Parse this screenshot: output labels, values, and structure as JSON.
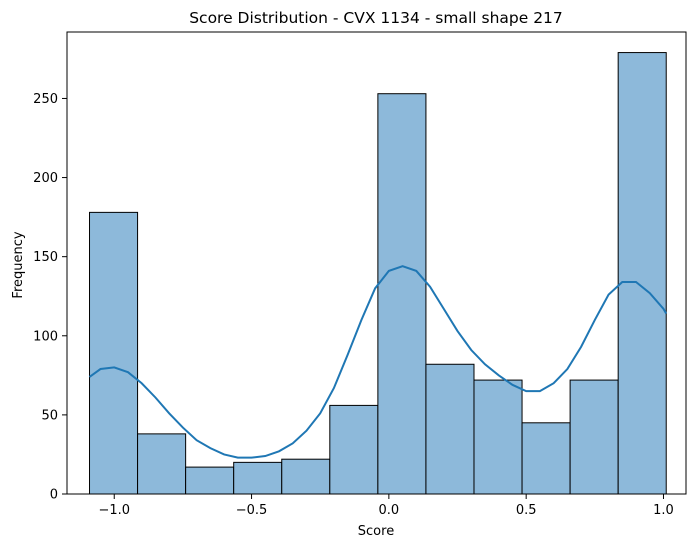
{
  "chart_data": {
    "type": "bar",
    "title": "Score Distribution - CVX 1134 - small shape 217",
    "xlabel": "Score",
    "ylabel": "Frequency",
    "xlim": [
      -1.172,
      1.082
    ],
    "ylim": [
      0,
      292
    ],
    "x_ticks": [
      -1.0,
      -0.5,
      0.0,
      0.5,
      1.0
    ],
    "x_tick_labels": [
      "−1.0",
      "−0.5",
      "0.0",
      "0.5",
      "1.0"
    ],
    "y_ticks": [
      0,
      50,
      100,
      150,
      200,
      250
    ],
    "y_tick_labels": [
      "0",
      "50",
      "100",
      "150",
      "200",
      "250"
    ],
    "grid": false,
    "bar_color": "#8db9da",
    "bar_edge_color": "#000000",
    "kde_color": "#1f77b4",
    "bins": [
      {
        "start": -1.09,
        "end": -0.915,
        "count": 178
      },
      {
        "start": -0.915,
        "end": -0.74,
        "count": 38
      },
      {
        "start": -0.74,
        "end": -0.565,
        "count": 17
      },
      {
        "start": -0.565,
        "end": -0.39,
        "count": 20
      },
      {
        "start": -0.39,
        "end": -0.215,
        "count": 22
      },
      {
        "start": -0.215,
        "end": -0.04,
        "count": 56
      },
      {
        "start": -0.04,
        "end": 0.135,
        "count": 253
      },
      {
        "start": 0.135,
        "end": 0.31,
        "count": 82
      },
      {
        "start": 0.31,
        "end": 0.485,
        "count": 72
      },
      {
        "start": 0.485,
        "end": 0.66,
        "count": 45
      },
      {
        "start": 0.66,
        "end": 0.835,
        "count": 72
      },
      {
        "start": 0.835,
        "end": 1.01,
        "count": 279
      }
    ],
    "kde": {
      "x": [
        -1.09,
        -1.05,
        -1.0,
        -0.95,
        -0.9,
        -0.85,
        -0.8,
        -0.75,
        -0.7,
        -0.65,
        -0.6,
        -0.55,
        -0.5,
        -0.45,
        -0.4,
        -0.35,
        -0.3,
        -0.25,
        -0.2,
        -0.15,
        -0.1,
        -0.05,
        0.0,
        0.05,
        0.1,
        0.15,
        0.2,
        0.25,
        0.3,
        0.35,
        0.4,
        0.45,
        0.5,
        0.55,
        0.6,
        0.65,
        0.7,
        0.75,
        0.8,
        0.85,
        0.9,
        0.95,
        1.0,
        1.01
      ],
      "y": [
        74,
        79,
        80,
        77,
        70,
        61,
        51,
        42,
        34,
        29,
        25,
        23,
        23,
        24,
        27,
        32,
        40,
        51,
        67,
        88,
        110,
        130,
        141,
        144,
        141,
        131,
        117,
        103,
        91,
        82,
        75,
        69,
        65,
        65,
        70,
        79,
        93,
        110,
        126,
        134,
        134,
        127,
        117,
        114
      ]
    }
  }
}
